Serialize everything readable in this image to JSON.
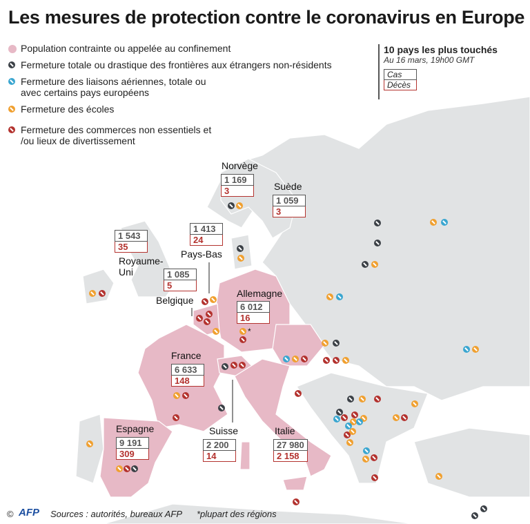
{
  "title": "Les mesures de protection contre le coronavirus en Europe",
  "legend": [
    {
      "type": "pink",
      "label": "Population contrainte ou appelée au confinement"
    },
    {
      "type": "dark",
      "label": "Fermeture totale ou drastique des frontières aux étrangers non-résidents"
    },
    {
      "type": "blue",
      "label": "Fermeture des liaisons aériennes, totale ou avec certains pays européens"
    },
    {
      "type": "orange",
      "label": "Fermeture des écoles"
    },
    {
      "type": "red",
      "label": "Fermeture des commerces non essentiels et /ou lieux de divertissement"
    }
  ],
  "top_ten": {
    "title": "10 pays les plus touchés",
    "subtitle": "Au 16 mars, 19h00 GMT",
    "cases_label": "Cas",
    "deaths_label": "Décès"
  },
  "countries": [
    {
      "name": "Norvège",
      "cases": "1 169",
      "deaths": "3"
    },
    {
      "name": "Suède",
      "cases": "1 059",
      "deaths": "3"
    },
    {
      "name": "Royaume-Uni",
      "cases": "1 543",
      "deaths": "35"
    },
    {
      "name": "Pays-Bas",
      "cases": "1 413",
      "deaths": "24"
    },
    {
      "name": "Belgique",
      "cases": "1 085",
      "deaths": "5"
    },
    {
      "name": "Allemagne",
      "cases": "6 012",
      "deaths": "16"
    },
    {
      "name": "France",
      "cases": "6 633",
      "deaths": "148"
    },
    {
      "name": "Espagne",
      "cases": "9 191",
      "deaths": "309"
    },
    {
      "name": "Suisse",
      "cases": "2 200",
      "deaths": "14"
    },
    {
      "name": "Italie",
      "cases": "27 980",
      "deaths": "2 158"
    }
  ],
  "star_note": "*",
  "colors": {
    "confinement": "#e7b9c6",
    "borders": "#3b4046",
    "air": "#3aa6d0",
    "schools": "#f0a030",
    "shops": "#b3322e",
    "land": "#e1e3e4"
  },
  "footer": {
    "copyright": "©",
    "logo": "AFP",
    "sources": "Sources : autorités, bureaux AFP",
    "note": "*plupart des régions"
  }
}
